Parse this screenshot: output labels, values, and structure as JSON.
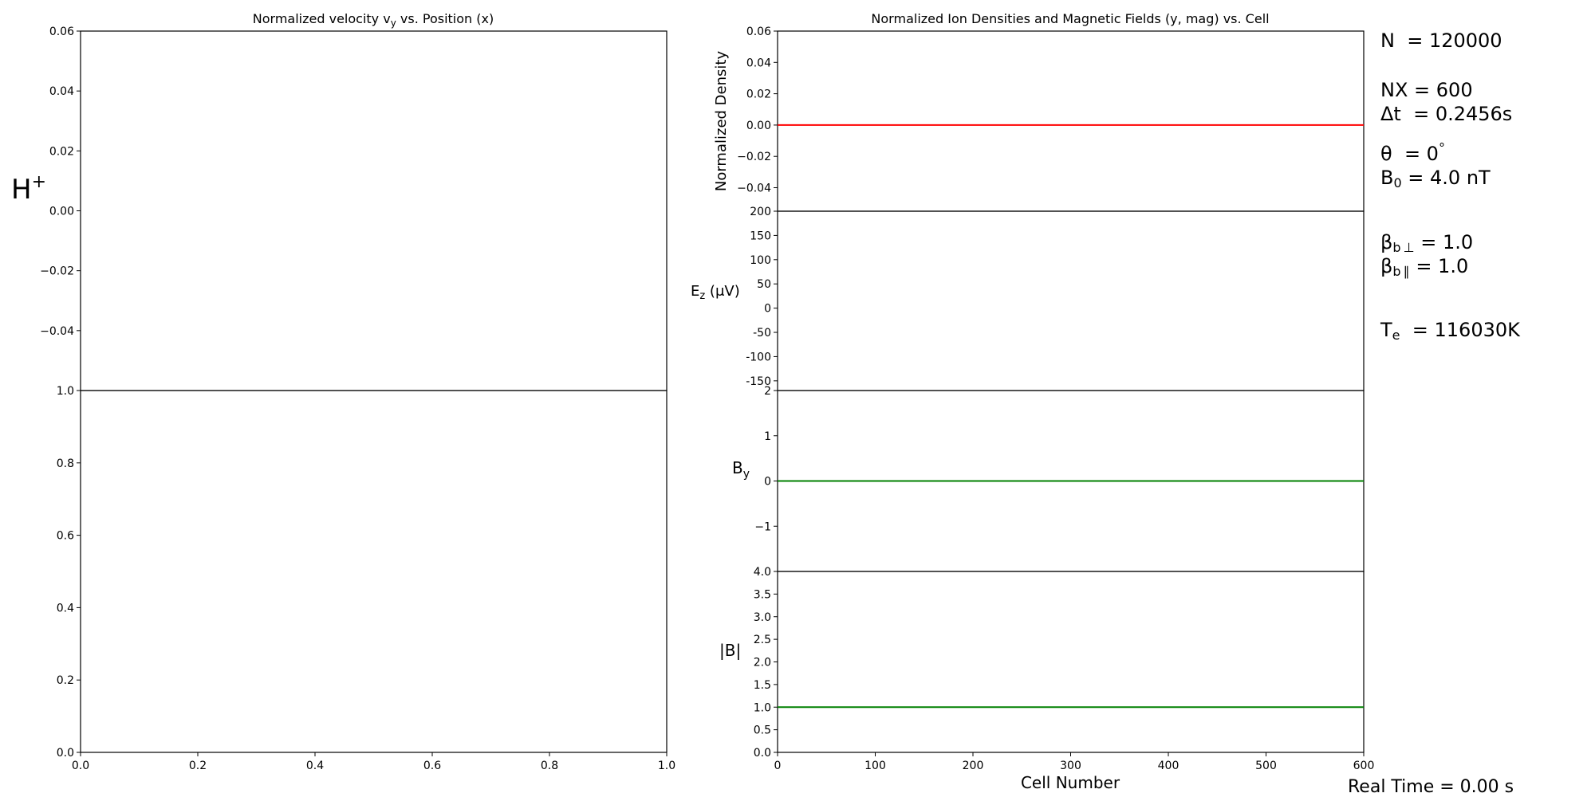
{
  "chart_data": [
    {
      "type": "scatter",
      "panel": "left-top",
      "title_main": "Normalized velocity v",
      "title_sub": "y",
      "title_rest": " vs. Position (x)",
      "species_label": "H",
      "species_charge": "+",
      "ylim": [
        -0.06,
        0.06
      ],
      "yticks": [
        "0.06",
        "0.04",
        "0.02",
        "0.00",
        "−0.02",
        "−0.04"
      ],
      "ytick_values": [
        0.06,
        0.04,
        0.02,
        0.0,
        -0.02,
        -0.04
      ],
      "grid": false,
      "points": []
    },
    {
      "type": "scatter",
      "panel": "left-bottom",
      "xlim": [
        0.0,
        1.0
      ],
      "ylim": [
        0.0,
        1.0
      ],
      "xticks": [
        "0.0",
        "0.2",
        "0.4",
        "0.6",
        "0.8",
        "1.0"
      ],
      "xtick_values": [
        0.0,
        0.2,
        0.4,
        0.6,
        0.8,
        1.0
      ],
      "yticks": [
        "1.0",
        "0.8",
        "0.6",
        "0.4",
        "0.2",
        "0.0"
      ],
      "ytick_values": [
        1.0,
        0.8,
        0.6,
        0.4,
        0.2,
        0.0
      ],
      "grid": false,
      "points": []
    },
    {
      "type": "line",
      "panel": "right-1",
      "title": "Normalized Ion Densities and Magnetic Fields (y, mag) vs. Cell",
      "ylabel": "Normalized Density",
      "ylim": [
        -0.055,
        0.06
      ],
      "yticks": [
        "0.06",
        "0.04",
        "0.02",
        "0.00",
        "−0.02",
        "−0.04"
      ],
      "ytick_values": [
        0.06,
        0.04,
        0.02,
        0.0,
        -0.02,
        -0.04
      ],
      "series": [
        {
          "color": "#ff0000",
          "x": [
            0,
            600
          ],
          "y": [
            0.0,
            0.0
          ]
        }
      ]
    },
    {
      "type": "line",
      "panel": "right-2",
      "ylabel_main": "E",
      "ylabel_sub": "z",
      "ylabel_rest": " (μV)",
      "ylim": [
        -170,
        200
      ],
      "yticks": [
        "200",
        "150",
        "100",
        "50",
        "0",
        "-50",
        "-100",
        "-150"
      ],
      "ytick_values": [
        200,
        150,
        100,
        50,
        0,
        -50,
        -100,
        -150
      ],
      "series": []
    },
    {
      "type": "line",
      "panel": "right-3",
      "ylabel_main": "B",
      "ylabel_sub": "y",
      "ylim": [
        -2,
        2
      ],
      "yticks": [
        "2",
        "1",
        "0",
        "−1"
      ],
      "ytick_values": [
        2,
        1,
        0,
        -1
      ],
      "series": [
        {
          "color": "#008000",
          "x": [
            0,
            600
          ],
          "y": [
            0.0,
            0.0
          ]
        }
      ]
    },
    {
      "type": "line",
      "panel": "right-4",
      "ylabel": "|B|",
      "xlabel": "Cell Number",
      "xlim": [
        0,
        600
      ],
      "ylim": [
        0.0,
        4.0
      ],
      "xticks": [
        "0",
        "100",
        "200",
        "300",
        "400",
        "500",
        "600"
      ],
      "xtick_values": [
        0,
        100,
        200,
        300,
        400,
        500,
        600
      ],
      "yticks": [
        "4.0",
        "3.5",
        "3.0",
        "2.5",
        "2.0",
        "1.5",
        "1.0",
        "0.5",
        "0.0"
      ],
      "ytick_values": [
        4.0,
        3.5,
        3.0,
        2.5,
        2.0,
        1.5,
        1.0,
        0.5,
        0.0
      ],
      "series": [
        {
          "color": "#008000",
          "x": [
            0,
            600
          ],
          "y": [
            1.0,
            1.0
          ]
        }
      ]
    }
  ],
  "params": {
    "N": {
      "label": "N",
      "eq": "  = 120000"
    },
    "NX": {
      "label": "NX",
      "eq": " = 600"
    },
    "dt": {
      "label": "Δt",
      "eq": "  = 0.2456s"
    },
    "theta": {
      "label": "θ",
      "eq": "  = 0",
      "deg": "°"
    },
    "B0": {
      "label": "B",
      "sub": "0",
      "eq": " = 4.0 nT"
    },
    "beta_perp": {
      "label": "β",
      "sub": "b ⊥",
      "eq": " = 1.0"
    },
    "beta_par": {
      "label": "β",
      "sub": "b ∥",
      "eq": " = 1.0"
    },
    "Te": {
      "label": "T",
      "sub": "e",
      "eq": "  = 116030K"
    }
  },
  "real_time": "Real Time = 0.00 s"
}
